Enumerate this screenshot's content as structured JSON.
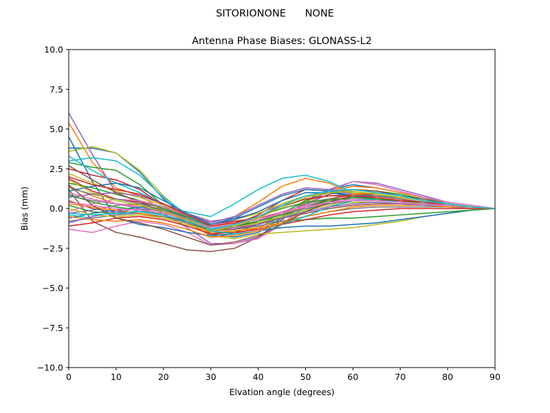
{
  "figure": {
    "suptitle": "SITORIONONE      NONE"
  },
  "chart_data": {
    "type": "line",
    "title": "Antenna Phase Biases: GLONASS-L2",
    "xlabel": "Elvation angle (degrees)",
    "ylabel": "Bias (mm)",
    "xlim": [
      0,
      90
    ],
    "ylim": [
      -10,
      10
    ],
    "xticks": [
      0,
      10,
      20,
      30,
      40,
      50,
      60,
      70,
      80,
      90
    ],
    "xtick_labels": [
      "0",
      "10",
      "20",
      "30",
      "40",
      "50",
      "60",
      "70",
      "80",
      "90"
    ],
    "yticks": [
      10,
      7.5,
      5,
      2.5,
      0,
      -2.5,
      -5,
      -7.5,
      -10
    ],
    "ytick_labels": [
      "10.0",
      "7.5",
      "5.0",
      "2.5",
      "0.0",
      "−2.5",
      "−5.0",
      "−7.5",
      "−10.0"
    ],
    "grid": false,
    "legend": "none",
    "x": [
      0,
      5,
      10,
      15,
      20,
      25,
      30,
      35,
      40,
      45,
      50,
      55,
      60,
      65,
      70,
      75,
      80,
      85,
      90
    ],
    "series": [
      {
        "color": "#1f77b4",
        "values": [
          3.8,
          3.8,
          3.5,
          2.3,
          0.6,
          -0.6,
          -1.6,
          -1.8,
          -1.5,
          -0.6,
          0.5,
          1.2,
          1.5,
          1.3,
          1.0,
          0.7,
          0.4,
          0.2,
          0.0
        ]
      },
      {
        "color": "#ff7f0e",
        "values": [
          5.4,
          2.9,
          1.3,
          0.8,
          -0.1,
          -0.9,
          -1.7,
          -1.6,
          -1.2,
          -0.5,
          0.4,
          1.1,
          1.4,
          1.3,
          1.0,
          0.7,
          0.4,
          0.2,
          0.0
        ]
      },
      {
        "color": "#2ca02c",
        "values": [
          2.9,
          2.6,
          2.4,
          1.5,
          0.2,
          -0.7,
          -1.5,
          -1.5,
          -1.0,
          -0.3,
          0.5,
          1.0,
          1.2,
          1.1,
          0.9,
          0.6,
          0.4,
          0.2,
          0.0
        ]
      },
      {
        "color": "#d62728",
        "values": [
          2.5,
          2.1,
          1.8,
          1.2,
          0.2,
          -0.6,
          -1.3,
          -1.0,
          -0.4,
          0.5,
          1.2,
          1.1,
          0.8,
          0.6,
          0.4,
          0.3,
          0.2,
          0.1,
          0.0
        ]
      },
      {
        "color": "#9467bd",
        "values": [
          6.0,
          3.4,
          1.0,
          0.4,
          -0.3,
          -1.2,
          -2.2,
          -2.2,
          -1.8,
          -1.0,
          0.2,
          1.2,
          1.7,
          1.6,
          1.2,
          0.8,
          0.4,
          0.2,
          0.0
        ]
      },
      {
        "color": "#8c564b",
        "values": [
          1.2,
          -0.8,
          -1.5,
          -1.8,
          -2.2,
          -2.6,
          -2.7,
          -2.5,
          -1.8,
          -0.7,
          0.3,
          0.9,
          1.2,
          1.1,
          0.8,
          0.6,
          0.3,
          0.1,
          0.0
        ]
      },
      {
        "color": "#e377c2",
        "values": [
          -1.3,
          -1.5,
          -1.1,
          -0.8,
          -1.0,
          -1.5,
          -2.3,
          -2.2,
          -1.9,
          -1.0,
          0.2,
          1.1,
          1.7,
          1.5,
          1.1,
          0.7,
          0.4,
          0.2,
          0.0
        ]
      },
      {
        "color": "#7f7f7f",
        "values": [
          0.8,
          0.5,
          0.3,
          0.0,
          -0.4,
          -0.9,
          -1.4,
          -1.1,
          -0.8,
          -0.3,
          0.3,
          0.6,
          0.7,
          0.6,
          0.5,
          0.4,
          0.2,
          0.1,
          0.0
        ]
      },
      {
        "color": "#bcbd22",
        "values": [
          3.6,
          3.9,
          3.5,
          2.4,
          0.8,
          -0.5,
          -1.7,
          -1.9,
          -1.6,
          -1.5,
          -1.4,
          -1.3,
          -1.2,
          -1.0,
          -0.8,
          -0.5,
          -0.3,
          -0.1,
          0.0
        ]
      },
      {
        "color": "#17becf",
        "values": [
          -0.4,
          -0.6,
          -0.4,
          -0.1,
          0.0,
          -0.2,
          -0.5,
          0.3,
          1.2,
          1.9,
          2.1,
          1.7,
          1.0,
          0.6,
          0.4,
          0.3,
          0.2,
          0.1,
          0.0
        ]
      },
      {
        "color": "#1f77b4",
        "values": [
          4.5,
          1.7,
          -0.6,
          -1.0,
          -1.2,
          -1.5,
          -1.7,
          -1.6,
          -1.4,
          -1.2,
          -1.1,
          -1.1,
          -1.0,
          -0.9,
          -0.7,
          -0.5,
          -0.3,
          -0.1,
          0.0
        ]
      },
      {
        "color": "#ff7f0e",
        "values": [
          1.4,
          0.8,
          0.3,
          0.2,
          0.0,
          -0.4,
          -0.9,
          -0.5,
          0.4,
          1.4,
          1.9,
          1.6,
          0.9,
          0.6,
          0.4,
          0.3,
          0.2,
          0.1,
          0.0
        ]
      },
      {
        "color": "#2ca02c",
        "values": [
          0.2,
          -0.2,
          -0.3,
          -0.2,
          -0.3,
          -0.6,
          -1.0,
          -0.9,
          -0.9,
          -0.8,
          -0.7,
          -0.6,
          -0.6,
          -0.5,
          -0.4,
          -0.3,
          -0.2,
          -0.1,
          0.0
        ]
      },
      {
        "color": "#d62728",
        "values": [
          1.9,
          1.1,
          0.6,
          0.4,
          0.1,
          -0.4,
          -1.0,
          -0.8,
          -0.6,
          -0.3,
          0.0,
          0.3,
          0.5,
          0.5,
          0.4,
          0.3,
          0.2,
          0.1,
          0.0
        ]
      },
      {
        "color": "#9467bd",
        "values": [
          -0.3,
          -0.1,
          0.2,
          0.3,
          0.1,
          -0.3,
          -0.8,
          -0.6,
          -0.3,
          0.2,
          0.6,
          0.8,
          0.9,
          0.8,
          0.6,
          0.4,
          0.2,
          0.1,
          0.0
        ]
      },
      {
        "color": "#8c564b",
        "values": [
          0.5,
          0.0,
          -0.2,
          -0.3,
          -0.5,
          -0.8,
          -1.2,
          -1.1,
          -0.9,
          -0.6,
          -0.3,
          0.0,
          0.2,
          0.3,
          0.3,
          0.2,
          0.2,
          0.1,
          0.0
        ]
      },
      {
        "color": "#e377c2",
        "values": [
          1.0,
          0.6,
          0.3,
          0.1,
          -0.2,
          -0.6,
          -1.1,
          -0.9,
          -0.6,
          -0.2,
          0.2,
          0.5,
          0.7,
          0.7,
          0.5,
          0.4,
          0.2,
          0.1,
          0.0
        ]
      },
      {
        "color": "#7f7f7f",
        "values": [
          -0.8,
          -0.6,
          -0.4,
          -0.3,
          -0.5,
          -0.9,
          -1.4,
          -1.3,
          -1.1,
          -0.8,
          -0.5,
          -0.2,
          0.0,
          0.1,
          0.1,
          0.1,
          0.1,
          0.0,
          0.0
        ]
      },
      {
        "color": "#bcbd22",
        "values": [
          2.2,
          1.6,
          1.1,
          0.7,
          0.2,
          -0.4,
          -1.0,
          -0.7,
          -0.3,
          0.3,
          0.8,
          1.0,
          1.0,
          0.9,
          0.7,
          0.5,
          0.3,
          0.1,
          0.0
        ]
      },
      {
        "color": "#17becf",
        "values": [
          3.3,
          2.4,
          1.6,
          1.0,
          0.3,
          -0.4,
          -1.2,
          -1.2,
          -1.0,
          -0.6,
          -0.1,
          0.4,
          0.8,
          0.8,
          0.7,
          0.5,
          0.3,
          0.1,
          0.0
        ]
      },
      {
        "color": "#1f77b4",
        "values": [
          -0.6,
          -0.3,
          -0.1,
          0.1,
          -0.1,
          -0.5,
          -1.0,
          -0.7,
          -0.2,
          0.5,
          1.0,
          1.0,
          0.8,
          0.6,
          0.4,
          0.3,
          0.2,
          0.1,
          0.0
        ]
      },
      {
        "color": "#ff7f0e",
        "values": [
          0.3,
          0.1,
          -0.1,
          -0.3,
          -0.6,
          -1.0,
          -1.5,
          -1.4,
          -1.2,
          -0.9,
          -0.5,
          -0.2,
          0.1,
          0.2,
          0.2,
          0.2,
          0.1,
          0.1,
          0.0
        ]
      },
      {
        "color": "#2ca02c",
        "values": [
          1.6,
          1.3,
          0.9,
          0.5,
          0.0,
          -0.5,
          -1.1,
          -0.9,
          -0.5,
          0.0,
          0.4,
          0.6,
          0.6,
          0.5,
          0.4,
          0.3,
          0.2,
          0.1,
          0.0
        ]
      },
      {
        "color": "#d62728",
        "values": [
          -1.1,
          -0.9,
          -0.6,
          -0.5,
          -0.7,
          -1.1,
          -1.6,
          -1.5,
          -1.3,
          -1.0,
          -0.7,
          -0.4,
          -0.2,
          -0.1,
          0.0,
          0.0,
          0.0,
          0.0,
          0.0
        ]
      },
      {
        "color": "#9467bd",
        "values": [
          0.7,
          0.9,
          1.0,
          0.8,
          0.3,
          -0.3,
          -0.9,
          -0.5,
          0.2,
          0.9,
          1.3,
          1.2,
          0.9,
          0.6,
          0.4,
          0.3,
          0.2,
          0.1,
          0.0
        ]
      },
      {
        "color": "#8c564b",
        "values": [
          2.7,
          1.8,
          1.0,
          0.4,
          -0.2,
          -0.8,
          -1.4,
          -1.3,
          -1.0,
          -0.5,
          0.1,
          0.6,
          0.9,
          0.9,
          0.7,
          0.5,
          0.3,
          0.1,
          0.0
        ]
      },
      {
        "color": "#e377c2",
        "values": [
          -0.2,
          0.3,
          0.6,
          0.5,
          0.1,
          -0.4,
          -1.0,
          -0.9,
          -0.7,
          -0.4,
          0.0,
          0.4,
          0.6,
          0.6,
          0.5,
          0.3,
          0.2,
          0.1,
          0.0
        ]
      },
      {
        "color": "#7f7f7f",
        "values": [
          1.3,
          0.9,
          0.6,
          0.3,
          -0.1,
          -0.6,
          -1.2,
          -1.0,
          -0.7,
          -0.4,
          0.0,
          0.3,
          0.5,
          0.5,
          0.4,
          0.3,
          0.2,
          0.1,
          0.0
        ]
      },
      {
        "color": "#bcbd22",
        "values": [
          0.0,
          -0.4,
          -0.5,
          -0.4,
          -0.6,
          -1.0,
          -1.4,
          -1.2,
          -0.9,
          -0.5,
          -0.1,
          0.2,
          0.4,
          0.4,
          0.3,
          0.3,
          0.2,
          0.1,
          0.0
        ]
      },
      {
        "color": "#17becf",
        "values": [
          3.0,
          3.2,
          3.0,
          2.1,
          0.7,
          -0.4,
          -1.4,
          -1.6,
          -1.4,
          -1.0,
          -0.5,
          0.1,
          0.5,
          0.6,
          0.5,
          0.4,
          0.2,
          0.1,
          0.0
        ]
      },
      {
        "color": "#1f77b4",
        "values": [
          1.1,
          1.4,
          1.6,
          1.3,
          0.5,
          -0.3,
          -1.0,
          -0.6,
          0.1,
          0.8,
          1.2,
          1.1,
          0.8,
          0.6,
          0.4,
          0.3,
          0.2,
          0.1,
          0.0
        ]
      },
      {
        "color": "#ff7f0e",
        "values": [
          -0.5,
          -0.7,
          -0.8,
          -0.7,
          -0.9,
          -1.3,
          -1.8,
          -1.7,
          -1.4,
          -0.9,
          -0.2,
          0.4,
          0.9,
          1.0,
          0.8,
          0.5,
          0.3,
          0.1,
          0.0
        ]
      },
      {
        "color": "#2ca02c",
        "values": [
          0.9,
          0.4,
          0.1,
          -0.1,
          -0.4,
          -0.8,
          -1.3,
          -1.1,
          -0.8,
          -0.4,
          0.1,
          0.5,
          0.7,
          0.6,
          0.5,
          0.3,
          0.2,
          0.1,
          0.0
        ]
      },
      {
        "color": "#d62728",
        "values": [
          2.0,
          1.5,
          1.2,
          0.9,
          0.3,
          -0.4,
          -1.1,
          -0.9,
          -0.5,
          0.1,
          0.6,
          0.8,
          0.8,
          0.7,
          0.5,
          0.4,
          0.2,
          0.1,
          0.0
        ]
      },
      {
        "color": "#9467bd",
        "values": [
          -0.9,
          -0.5,
          -0.2,
          0.0,
          -0.2,
          -0.7,
          -1.3,
          -1.2,
          -1.0,
          -0.6,
          -0.2,
          0.1,
          0.3,
          0.4,
          0.3,
          0.2,
          0.2,
          0.1,
          0.0
        ]
      },
      {
        "color": "#8c564b",
        "values": [
          1.5,
          0.2,
          -0.6,
          -0.9,
          -1.3,
          -1.8,
          -2.3,
          -2.1,
          -1.7,
          -1.0,
          -0.2,
          0.4,
          0.8,
          0.8,
          0.6,
          0.4,
          0.3,
          0.1,
          0.0
        ]
      },
      {
        "color": "#e377c2",
        "values": [
          0.4,
          0.2,
          0.0,
          -0.1,
          -0.3,
          -0.7,
          -1.2,
          -1.0,
          -0.7,
          -0.3,
          0.1,
          0.4,
          0.5,
          0.5,
          0.4,
          0.3,
          0.2,
          0.1,
          0.0
        ]
      },
      {
        "color": "#bcbd22",
        "values": [
          1.8,
          1.0,
          0.5,
          0.2,
          -0.2,
          -0.7,
          -1.3,
          -1.1,
          -0.6,
          0.1,
          0.7,
          1.0,
          1.1,
          0.9,
          0.7,
          0.5,
          0.3,
          0.1,
          0.0
        ]
      },
      {
        "color": "#17becf",
        "values": [
          -0.3,
          -0.4,
          -0.3,
          -0.2,
          -0.4,
          -0.8,
          -1.3,
          -1.0,
          -0.5,
          0.2,
          0.8,
          1.1,
          1.2,
          1.0,
          0.8,
          0.5,
          0.3,
          0.1,
          0.0
        ]
      }
    ]
  }
}
